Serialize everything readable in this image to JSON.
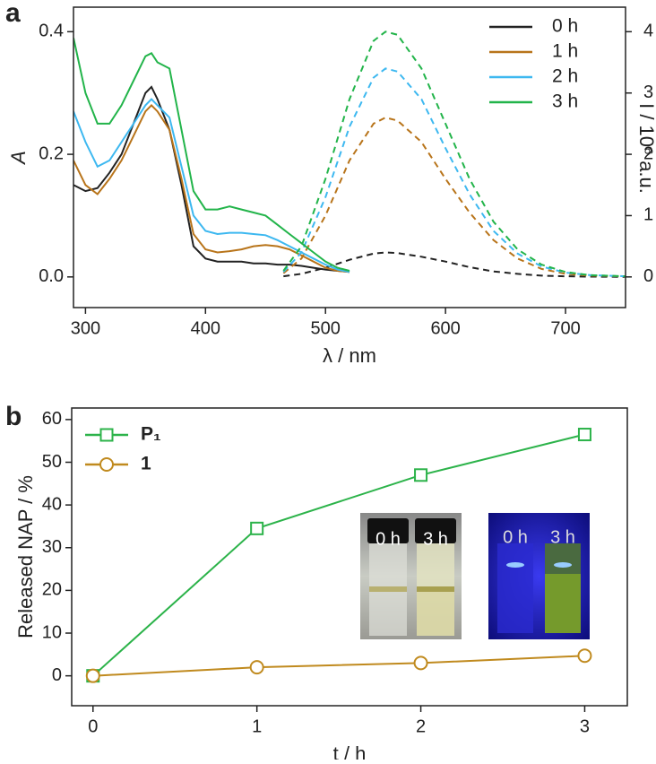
{
  "panels": [
    "a",
    "b"
  ],
  "photos": [
    [
      "0 h",
      "3 h"
    ],
    [
      "0 h",
      "3 h"
    ]
  ],
  "chart_data": [
    {
      "type": "line",
      "xlabel": "λ / nm",
      "ylabel": "A",
      "y2label": "I / 10⁶ a.u.",
      "xlim": [
        290,
        750
      ],
      "xticks": [
        300,
        400,
        500,
        600,
        700
      ],
      "ylim": [
        -0.05,
        0.44
      ],
      "yticks": [
        {
          "value": 0,
          "label": "0.0"
        },
        0.2,
        0.4
      ],
      "y2lim": [
        -0.5,
        4.4
      ],
      "y2ticks": [
        0,
        1,
        2,
        3,
        4
      ],
      "legend": "upper right",
      "x": [
        290,
        300,
        310,
        320,
        330,
        340,
        350,
        355,
        360,
        370,
        380,
        390,
        400,
        410,
        420,
        430,
        440,
        450,
        460,
        470,
        480,
        490,
        500,
        510,
        520
      ],
      "emission_x": [
        465,
        480,
        500,
        520,
        540,
        550,
        560,
        580,
        600,
        620,
        640,
        660,
        680,
        700,
        720,
        750
      ],
      "series": [
        {
          "name": "0 h",
          "color": "#222222",
          "values": [
            0.15,
            0.14,
            0.145,
            0.17,
            0.2,
            0.25,
            0.3,
            0.31,
            0.29,
            0.24,
            0.15,
            0.05,
            0.03,
            0.025,
            0.025,
            0.025,
            0.022,
            0.022,
            0.02,
            0.02,
            0.018,
            0.015,
            0.012,
            0.01,
            0.008
          ],
          "emission": [
            0.01,
            0.05,
            0.15,
            0.28,
            0.38,
            0.4,
            0.39,
            0.33,
            0.25,
            0.16,
            0.09,
            0.05,
            0.02,
            0.01,
            0.005,
            0
          ]
        },
        {
          "name": "1 h",
          "color": "#b8741a",
          "values": [
            0.19,
            0.15,
            0.135,
            0.16,
            0.19,
            0.23,
            0.27,
            0.28,
            0.27,
            0.24,
            0.16,
            0.07,
            0.045,
            0.04,
            0.042,
            0.045,
            0.05,
            0.052,
            0.05,
            0.045,
            0.035,
            0.025,
            0.015,
            0.01,
            0.008
          ],
          "emission": [
            0.06,
            0.3,
            1.0,
            1.9,
            2.5,
            2.6,
            2.55,
            2.2,
            1.6,
            1.05,
            0.6,
            0.3,
            0.13,
            0.05,
            0.02,
            0.01
          ]
        },
        {
          "name": "2 h",
          "color": "#3db8f0",
          "values": [
            0.27,
            0.22,
            0.18,
            0.19,
            0.22,
            0.25,
            0.28,
            0.29,
            0.28,
            0.26,
            0.18,
            0.1,
            0.075,
            0.07,
            0.072,
            0.072,
            0.07,
            0.068,
            0.06,
            0.05,
            0.04,
            0.03,
            0.02,
            0.012,
            0.008
          ],
          "emission": [
            0.08,
            0.4,
            1.3,
            2.45,
            3.25,
            3.4,
            3.35,
            2.9,
            2.1,
            1.35,
            0.75,
            0.38,
            0.17,
            0.07,
            0.03,
            0.01
          ]
        },
        {
          "name": "3 h",
          "color": "#22b44a",
          "values": [
            0.39,
            0.3,
            0.25,
            0.25,
            0.28,
            0.32,
            0.36,
            0.365,
            0.35,
            0.34,
            0.24,
            0.14,
            0.11,
            0.11,
            0.115,
            0.11,
            0.105,
            0.1,
            0.085,
            0.07,
            0.055,
            0.04,
            0.025,
            0.015,
            0.01
          ],
          "emission": [
            0.1,
            0.5,
            1.6,
            2.9,
            3.85,
            4.0,
            3.95,
            3.4,
            2.5,
            1.6,
            0.9,
            0.45,
            0.2,
            0.08,
            0.03,
            0.01
          ]
        }
      ]
    },
    {
      "type": "line",
      "xlabel": "t / h",
      "ylabel": "Released NAP / %",
      "xlim": [
        -0.13,
        3.26
      ],
      "xticks": [
        0,
        1,
        2,
        3
      ],
      "ylim": [
        -7,
        62.7
      ],
      "yticks": [
        0,
        10,
        20,
        30,
        40,
        50,
        60
      ],
      "legend": "upper left",
      "x": [
        0,
        1,
        2,
        3
      ],
      "series": [
        {
          "name": "P₁",
          "color": "#2cb34a",
          "marker": "square",
          "values": [
            0,
            34.5,
            47,
            56.5
          ]
        },
        {
          "name": "1",
          "color": "#c08a1e",
          "marker": "circle",
          "values": [
            0,
            2,
            3,
            4.7
          ]
        }
      ]
    }
  ]
}
